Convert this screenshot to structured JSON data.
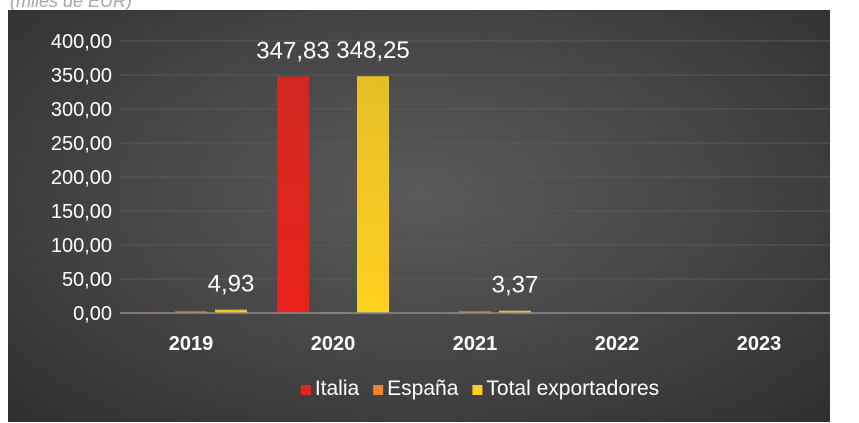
{
  "caption": "(miles de EUR)",
  "chart_data": {
    "type": "bar",
    "categories": [
      "2019",
      "2020",
      "2021",
      "2022",
      "2023"
    ],
    "series": [
      {
        "name": "Italia",
        "color": "#e8221a",
        "values": [
          0.1,
          347.83,
          0,
          0,
          0
        ]
      },
      {
        "name": "España",
        "color": "#f0852a",
        "values": [
          2.5,
          0.1,
          2.5,
          0,
          0
        ]
      },
      {
        "name": "Total exportadores",
        "color": "#ffd21f",
        "values": [
          4.93,
          348.25,
          3.37,
          0,
          0
        ]
      }
    ],
    "data_labels": [
      {
        "category": "2019",
        "series": "Total exportadores",
        "text": "4,93"
      },
      {
        "category": "2020",
        "series": "Italia",
        "text": "347,83"
      },
      {
        "category": "2020",
        "series": "Total exportadores",
        "text": "348,25"
      },
      {
        "category": "2021",
        "series": "Total exportadores",
        "text": "3,37"
      }
    ],
    "y_ticks": [
      "0,00",
      "50,00",
      "100,00",
      "150,00",
      "200,00",
      "250,00",
      "300,00",
      "350,00",
      "400,00"
    ],
    "ylim": [
      0,
      400
    ],
    "grid": true,
    "legend_position": "bottom",
    "colors": {
      "background": "#404040",
      "grid": "#595959",
      "axis": "#8c8c8c",
      "text": "#ffffff"
    }
  }
}
